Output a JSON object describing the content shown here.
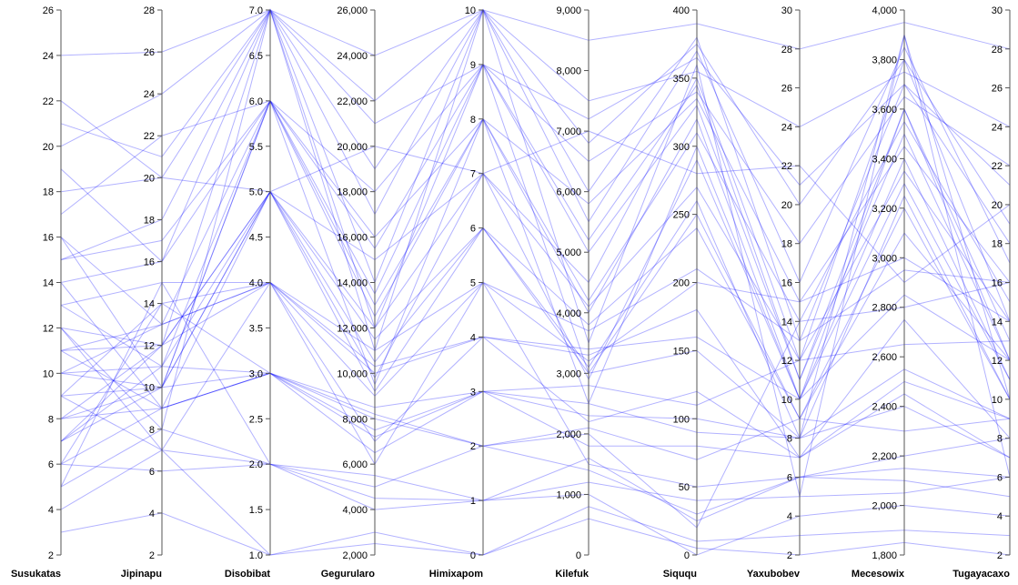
{
  "chart_data": {
    "type": "parallel-coordinates",
    "line_color": "#0000ff",
    "line_opacity": 0.3,
    "axes": [
      {
        "name": "Susukatas",
        "min": 2,
        "max": 26,
        "ticks": [
          "2",
          "4",
          "6",
          "8",
          "10",
          "12",
          "14",
          "16",
          "18",
          "20",
          "22",
          "24",
          "26"
        ],
        "integer": true
      },
      {
        "name": "Jipinapu",
        "min": 2,
        "max": 28,
        "ticks": [
          "2",
          "4",
          "6",
          "8",
          "10",
          "12",
          "14",
          "16",
          "18",
          "20",
          "22",
          "24",
          "26",
          "28"
        ],
        "integer": true
      },
      {
        "name": "Disobibat",
        "min": 1.0,
        "max": 7.0,
        "ticks": [
          "1.0",
          "1.5",
          "2.0",
          "2.5",
          "3.0",
          "3.5",
          "4.0",
          "4.5",
          "5.0",
          "5.5",
          "6.0",
          "6.5",
          "7.0"
        ],
        "integer": true
      },
      {
        "name": "Gegurularo",
        "min": 2000,
        "max": 26000,
        "ticks": [
          "2,000",
          "4,000",
          "6,000",
          "8,000",
          "10,000",
          "12,000",
          "14,000",
          "16,000",
          "18,000",
          "20,000",
          "22,000",
          "24,000",
          "26,000"
        ],
        "integer": false
      },
      {
        "name": "Himixapom",
        "min": 0,
        "max": 10,
        "ticks": [
          "0",
          "1",
          "2",
          "3",
          "4",
          "5",
          "6",
          "7",
          "8",
          "9",
          "10"
        ],
        "integer": true
      },
      {
        "name": "Kilefuk",
        "min": 0,
        "max": 9000,
        "ticks": [
          "0",
          "1,000",
          "2,000",
          "3,000",
          "4,000",
          "5,000",
          "6,000",
          "7,000",
          "8,000",
          "9,000"
        ],
        "integer": false
      },
      {
        "name": "Siququ",
        "min": 0,
        "max": 400,
        "ticks": [
          "0",
          "50",
          "100",
          "150",
          "200",
          "250",
          "300",
          "350",
          "400"
        ],
        "integer": false
      },
      {
        "name": "Yaxubobev",
        "min": 2,
        "max": 30,
        "ticks": [
          "2",
          "4",
          "6",
          "8",
          "10",
          "12",
          "14",
          "16",
          "18",
          "20",
          "22",
          "24",
          "26",
          "28",
          "30"
        ],
        "integer": true
      },
      {
        "name": "Mecesowix",
        "min": 1800,
        "max": 4000,
        "ticks": [
          "1,800",
          "2,000",
          "2,200",
          "2,400",
          "2,600",
          "2,800",
          "3,000",
          "3,200",
          "3,400",
          "3,600",
          "3,800",
          "4,000"
        ],
        "integer": false
      },
      {
        "name": "Tugayacaxo",
        "min": 2,
        "max": 30,
        "ticks": [
          "2",
          "4",
          "6",
          "8",
          "10",
          "12",
          "14",
          "16",
          "18",
          "20",
          "22",
          "24",
          "26",
          "28",
          "30"
        ],
        "integer": true
      }
    ],
    "records": [
      [
        11,
        12,
        7,
        12000,
        9,
        3000,
        150,
        8,
        3900,
        10
      ],
      [
        8,
        10,
        6,
        9500,
        8,
        2500,
        300,
        10,
        3600,
        12
      ],
      [
        14,
        9,
        5,
        15000,
        7,
        4500,
        350,
        12,
        3800,
        14
      ],
      [
        6,
        14,
        4,
        6000,
        5,
        1500,
        50,
        6,
        2200,
        8
      ],
      [
        10,
        11,
        3,
        8000,
        2,
        2000,
        20,
        14,
        2800,
        16
      ],
      [
        12,
        8,
        7,
        11000,
        10,
        3500,
        360,
        5,
        3900,
        6
      ],
      [
        5,
        15,
        2,
        4000,
        1,
        1000,
        0,
        4,
        2000,
        4
      ],
      [
        16,
        13,
        6,
        13500,
        9,
        5000,
        330,
        11,
        3500,
        12
      ],
      [
        9,
        10,
        5,
        10500,
        6,
        3000,
        250,
        9,
        3200,
        10
      ],
      [
        7,
        12,
        4,
        7000,
        4,
        2200,
        120,
        7,
        2500,
        9
      ],
      [
        19,
        16,
        7,
        17000,
        10,
        6000,
        380,
        13,
        3700,
        18
      ],
      [
        4,
        7,
        1,
        3000,
        0,
        800,
        10,
        3,
        1900,
        3
      ],
      [
        13,
        11,
        6,
        12500,
        8,
        4000,
        320,
        10,
        3300,
        11
      ],
      [
        8,
        9,
        3,
        8500,
        3,
        2500,
        90,
        8,
        2400,
        7
      ],
      [
        22,
        20,
        5,
        20000,
        7,
        7000,
        280,
        22,
        2900,
        20
      ],
      [
        11,
        13,
        4,
        9000,
        5,
        3200,
        200,
        15,
        3000,
        14
      ],
      [
        6,
        6,
        2,
        5000,
        2,
        1400,
        30,
        6,
        2100,
        5
      ],
      [
        15,
        18,
        7,
        14000,
        10,
        5500,
        370,
        16,
        3850,
        17
      ],
      [
        10,
        10,
        5,
        11500,
        6,
        3800,
        240,
        9,
        3100,
        12
      ],
      [
        3,
        4,
        1,
        2500,
        0,
        600,
        5,
        2,
        1850,
        2
      ],
      [
        17,
        22,
        6,
        18000,
        9,
        6500,
        340,
        18,
        3650,
        22
      ],
      [
        9,
        14,
        3,
        7500,
        3,
        2800,
        110,
        12,
        2650,
        13
      ],
      [
        12,
        7,
        4,
        10000,
        4,
        3300,
        180,
        7,
        2750,
        8
      ],
      [
        24,
        26,
        7,
        24000,
        10,
        8500,
        390,
        28,
        3950,
        28
      ],
      [
        7,
        11,
        5,
        9800,
        7,
        2900,
        290,
        10,
        3400,
        11
      ],
      [
        14,
        16,
        6,
        13000,
        8,
        4200,
        310,
        14,
        3550,
        15
      ],
      [
        5,
        8,
        2,
        4500,
        1,
        1200,
        40,
        5,
        2050,
        6
      ],
      [
        20,
        24,
        7,
        22000,
        10,
        7500,
        355,
        24,
        3750,
        24
      ],
      [
        11,
        9,
        3,
        8200,
        2,
        2100,
        70,
        9,
        2300,
        9
      ],
      [
        13,
        15,
        4,
        11000,
        5,
        3700,
        210,
        13,
        2950,
        16
      ],
      [
        8,
        12,
        5,
        9200,
        6,
        3100,
        260,
        8,
        3250,
        10
      ],
      [
        16,
        10,
        6,
        15500,
        9,
        5200,
        345,
        11,
        3600,
        13
      ],
      [
        10,
        13,
        4,
        10300,
        4,
        3400,
        160,
        10,
        2850,
        12
      ],
      [
        6,
        9,
        3,
        6500,
        3,
        1800,
        80,
        7,
        2450,
        7
      ],
      [
        18,
        20,
        7,
        19000,
        10,
        6800,
        375,
        20,
        3800,
        19
      ],
      [
        12,
        12,
        5,
        12000,
        7,
        4100,
        270,
        12,
        3350,
        14
      ],
      [
        9,
        7,
        2,
        5500,
        1,
        1600,
        25,
        6,
        2150,
        6
      ],
      [
        15,
        17,
        6,
        16000,
        8,
        5800,
        335,
        15,
        3450,
        16
      ],
      [
        7,
        10,
        3,
        7200,
        3,
        2300,
        100,
        8,
        2550,
        9
      ],
      [
        21,
        21,
        7,
        21000,
        9,
        7200,
        365,
        21,
        3700,
        21
      ]
    ]
  }
}
